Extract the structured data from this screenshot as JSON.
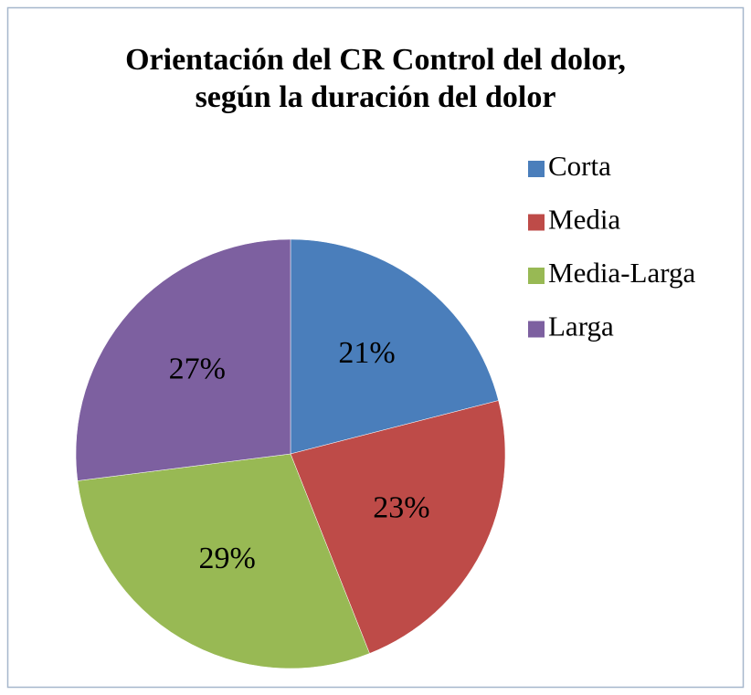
{
  "chart_data": {
    "type": "pie",
    "title": [
      "Orientación del CR Control del dolor,",
      "según la duración del dolor"
    ],
    "categories": [
      "Corta",
      "Media",
      "Media-Larga",
      "Larga"
    ],
    "values": [
      21,
      23,
      29,
      27
    ],
    "value_labels": [
      "21%",
      "23%",
      "29%",
      "27%"
    ],
    "colors": [
      "#4a7ebb",
      "#be4b48",
      "#98b954",
      "#7d60a0"
    ],
    "legend": "right"
  }
}
